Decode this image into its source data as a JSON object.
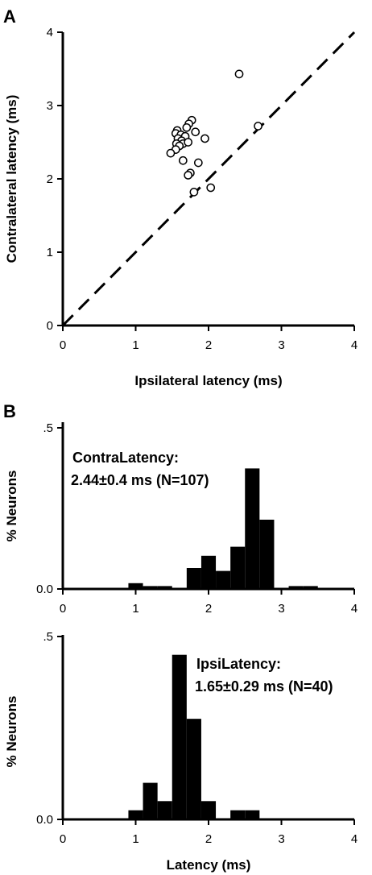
{
  "chart_data": [
    {
      "panel": "A",
      "type": "scatter",
      "xlabel": "Ipsilateral latency (ms)",
      "ylabel": "Contralateral latency (ms)",
      "xlim": [
        0,
        4
      ],
      "ylim": [
        0,
        4
      ],
      "xticks": [
        "0",
        "1",
        "2",
        "3",
        "4"
      ],
      "yticks": [
        "0",
        "1",
        "2",
        "3",
        "4"
      ],
      "reference_line": "dashed unity line",
      "points": [
        {
          "x": 2.42,
          "y": 3.43
        },
        {
          "x": 2.68,
          "y": 2.72
        },
        {
          "x": 1.77,
          "y": 2.8
        },
        {
          "x": 1.73,
          "y": 2.75
        },
        {
          "x": 1.7,
          "y": 2.7
        },
        {
          "x": 1.82,
          "y": 2.64
        },
        {
          "x": 1.57,
          "y": 2.66
        },
        {
          "x": 1.55,
          "y": 2.62
        },
        {
          "x": 1.62,
          "y": 2.6
        },
        {
          "x": 1.68,
          "y": 2.58
        },
        {
          "x": 1.58,
          "y": 2.55
        },
        {
          "x": 1.63,
          "y": 2.52
        },
        {
          "x": 1.95,
          "y": 2.55
        },
        {
          "x": 1.56,
          "y": 2.48
        },
        {
          "x": 1.65,
          "y": 2.48
        },
        {
          "x": 1.72,
          "y": 2.5
        },
        {
          "x": 1.6,
          "y": 2.45
        },
        {
          "x": 1.55,
          "y": 2.4
        },
        {
          "x": 1.48,
          "y": 2.35
        },
        {
          "x": 1.65,
          "y": 2.25
        },
        {
          "x": 1.86,
          "y": 2.22
        },
        {
          "x": 1.75,
          "y": 2.08
        },
        {
          "x": 1.72,
          "y": 2.05
        },
        {
          "x": 2.03,
          "y": 1.88
        },
        {
          "x": 1.8,
          "y": 1.82
        }
      ]
    },
    {
      "panel": "B",
      "type": "bar",
      "ylabel": "% Neurons",
      "xlim": [
        0,
        4
      ],
      "ylim": [
        0,
        0.5
      ],
      "xticks": [
        "0",
        "1",
        "2",
        "3",
        "4"
      ],
      "yticks": [
        ".5",
        "0.0"
      ],
      "annotation_title": "ContraLatency:",
      "annotation_stats": "2.44±0.4 ms (N=107)",
      "bin_width": 0.2,
      "bins": [
        {
          "start": 0.9,
          "value": 0.018
        },
        {
          "start": 1.1,
          "value": 0.009
        },
        {
          "start": 1.3,
          "value": 0.009
        },
        {
          "start": 1.7,
          "value": 0.065
        },
        {
          "start": 1.9,
          "value": 0.103
        },
        {
          "start": 2.1,
          "value": 0.056
        },
        {
          "start": 2.3,
          "value": 0.131
        },
        {
          "start": 2.5,
          "value": 0.374
        },
        {
          "start": 2.7,
          "value": 0.215
        },
        {
          "start": 3.1,
          "value": 0.009
        },
        {
          "start": 3.3,
          "value": 0.009
        }
      ]
    },
    {
      "type": "bar",
      "xlabel": "Latency (ms)",
      "ylabel": "% Neurons",
      "xlim": [
        0,
        4
      ],
      "ylim": [
        0,
        0.5
      ],
      "xticks": [
        "0",
        "1",
        "2",
        "3",
        "4"
      ],
      "yticks": [
        ".5",
        "0.0"
      ],
      "annotation_title": "IpsiLatency:",
      "annotation_stats": "1.65±0.29 ms (N=40)",
      "bin_width": 0.2,
      "bins": [
        {
          "start": 0.9,
          "value": 0.025
        },
        {
          "start": 1.1,
          "value": 0.1
        },
        {
          "start": 1.3,
          "value": 0.05
        },
        {
          "start": 1.5,
          "value": 0.45
        },
        {
          "start": 1.7,
          "value": 0.275
        },
        {
          "start": 1.9,
          "value": 0.05
        },
        {
          "start": 2.3,
          "value": 0.025
        },
        {
          "start": 2.5,
          "value": 0.025
        }
      ]
    }
  ]
}
